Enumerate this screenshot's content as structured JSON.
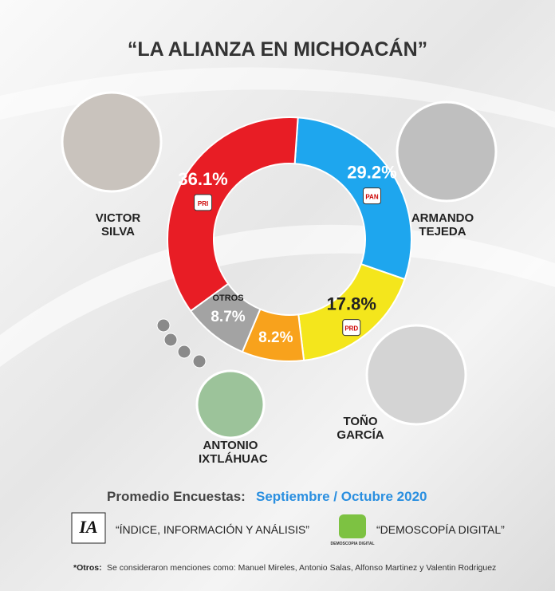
{
  "chart_data": {
    "type": "donut",
    "title": "“LA ALIANZA EN MICHOACÁN”",
    "categories": [
      "ARMANDO TEJEDA",
      "TOÑO GARCÍA",
      "ANTONIO IXTLÁHUAC",
      "OTROS",
      "VICTOR SILVA"
    ],
    "values": [
      29.2,
      17.8,
      8.2,
      8.7,
      36.1
    ],
    "value_labels": [
      "29.2%",
      "17.8%",
      "8.2%",
      "8.7%",
      "36.1%"
    ],
    "colors": [
      "#1ea6ee",
      "#f4e61c",
      "#f8a21c",
      "#a3a3a3",
      "#e81d25"
    ],
    "parties": [
      "PAN",
      "PRD",
      null,
      null,
      "PRI"
    ]
  },
  "footer": {
    "period_label": "Promedio Encuestas:",
    "period": "Septiembre / Octubre 2020",
    "source1_logo": "IA",
    "source1": "“ÍNDICE, INFORMACIÓN Y ANÁLISIS”",
    "source2_logo": "DEMOSCOPIA DIGITAL",
    "source2": "“DEMOSCOPÍA DIGITAL”",
    "note_label": "*Otros:",
    "note": "Se consideraron menciones como: Manuel Mireles, Antonio Salas, Alfonso Martinez y Valentin Rodriguez"
  }
}
